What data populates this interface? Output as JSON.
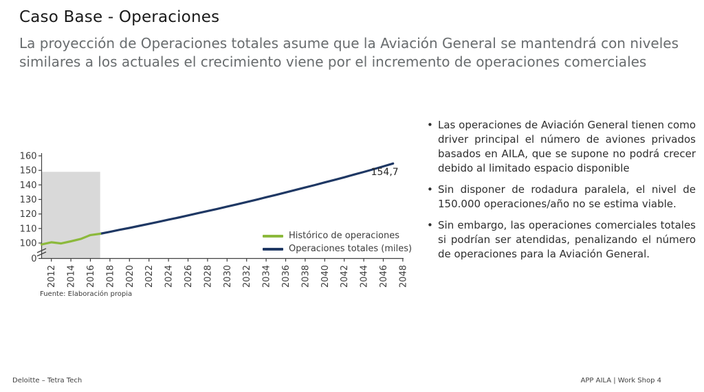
{
  "header": {
    "title": "Caso Base - Operaciones",
    "subtitle_lines": [
      "La proyección de Operaciones totales asume que la Aviación General se mantendrá con niveles",
      "similares a los actuales el crecimiento viene por el incremento de operaciones comerciales"
    ]
  },
  "chart_data": {
    "type": "line",
    "title": "",
    "xlabel": "",
    "ylabel": "",
    "x_range": [
      2011,
      2048.2
    ],
    "x_ticks": [
      2012,
      2014,
      2016,
      2018,
      2020,
      2022,
      2024,
      2026,
      2028,
      2030,
      2032,
      2034,
      2036,
      2038,
      2040,
      2042,
      2044,
      2046,
      2048
    ],
    "x_tick_rotation": -90,
    "y_ticks": [
      0,
      100,
      110,
      120,
      130,
      140,
      150,
      160
    ],
    "y_axis_break_between": [
      0,
      100
    ],
    "grid": false,
    "legend_position": "inside-bottom-right",
    "highlight_region": {
      "x_start": 2011,
      "x_end": 2017,
      "y_from": 0,
      "y_to": 149,
      "color": "#d9d9d9"
    },
    "series": [
      {
        "name": "Histórico de operaciones",
        "color": "#8cb93c",
        "x": [
          2011,
          2012,
          2013,
          2014,
          2015,
          2016,
          2017
        ],
        "values": [
          99.0,
          100.5,
          99.7,
          101.2,
          102.8,
          105.5,
          106.4
        ]
      },
      {
        "name": "Operaciones totales (miles)",
        "color": "#1f3864",
        "x": [
          2017,
          2018,
          2019,
          2020,
          2021,
          2022,
          2023,
          2024,
          2025,
          2026,
          2027,
          2028,
          2029,
          2030,
          2031,
          2032,
          2033,
          2034,
          2035,
          2036,
          2037,
          2038,
          2039,
          2040,
          2041,
          2042,
          2043,
          2044,
          2045,
          2046,
          2047
        ],
        "values": [
          106.4,
          107.7,
          109.1,
          110.4,
          111.8,
          113.2,
          114.6,
          116.1,
          117.5,
          119.0,
          120.5,
          122.0,
          123.5,
          125.1,
          126.6,
          128.2,
          129.8,
          131.5,
          133.1,
          134.8,
          136.5,
          138.2,
          139.9,
          141.7,
          143.4,
          145.2,
          147.1,
          148.9,
          150.8,
          152.7,
          154.7
        ]
      }
    ],
    "end_label": {
      "text": "154,7",
      "x": 2047,
      "y": 154.7
    },
    "source_note": "Fuente: Elaboración propia"
  },
  "bullets": [
    "Las operaciones de Aviación General tienen como driver principal el número de aviones privados basados en AILA, que se supone no podrá crecer debido al limitado espacio disponible",
    "Sin disponer de rodadura paralela, el nivel de 150.000 operaciones/año no se estima viable.",
    "Sin embargo, las operaciones comerciales totales si podrían ser atendidas, penalizando el número de operaciones para la Aviación General."
  ],
  "footer": {
    "left": "Deloitte – Tetra Tech",
    "right": "APP AILA | Work Shop 4"
  },
  "colors": {
    "historic_green": "#8cb93c",
    "projection_navy": "#1f3864",
    "highlight_gray": "#d9d9d9",
    "axis": "#404040",
    "title_text": "#1a1a1a",
    "subtitle_text": "#686c6e",
    "body_text": "#2e2e2e"
  }
}
